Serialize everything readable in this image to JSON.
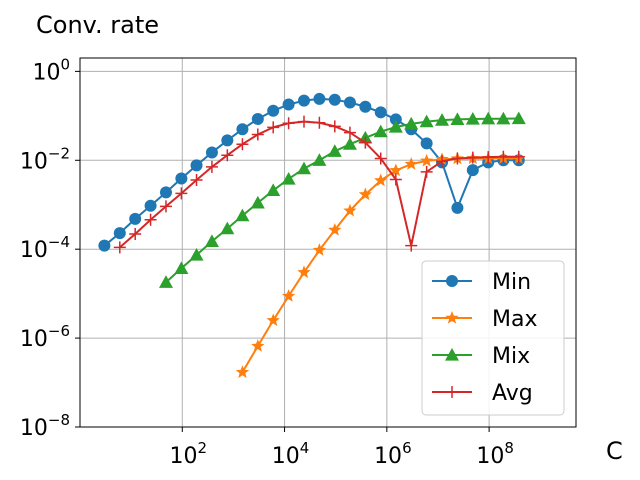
{
  "chart_data": {
    "type": "line",
    "title": "Conv. rate",
    "xlabel": "C",
    "ylabel": "",
    "xscale": "log",
    "yscale": "log",
    "xlim": [
      1,
      5000000000
    ],
    "ylim": [
      1e-08,
      2
    ],
    "xticks": [
      {
        "value": 100,
        "base": "10",
        "exp": "2"
      },
      {
        "value": 10000,
        "base": "10",
        "exp": "4"
      },
      {
        "value": 1000000,
        "base": "10",
        "exp": "6"
      },
      {
        "value": 100000000,
        "base": "10",
        "exp": "8"
      }
    ],
    "yticks": [
      {
        "value": 1,
        "base": "10",
        "exp": "0"
      },
      {
        "value": 0.01,
        "base": "10",
        "exp": "−2"
      },
      {
        "value": 0.0001,
        "base": "10",
        "exp": "−4"
      },
      {
        "value": 1e-06,
        "base": "10",
        "exp": "−6"
      },
      {
        "value": 1e-08,
        "base": "10",
        "exp": "−8"
      }
    ],
    "grid": true,
    "legend_position": "lower-right",
    "series": [
      {
        "name": "Min",
        "color": "#1f77b4",
        "marker": "circle",
        "x": [
          3,
          6,
          12,
          24,
          48,
          96,
          190,
          380,
          760,
          1500,
          3000,
          6000,
          12000,
          24000,
          48000,
          96000,
          190000,
          380000,
          760000,
          1500000,
          3000000,
          6000000,
          12000000,
          24000000,
          48000000,
          96000000,
          190000000,
          380000000
        ],
        "y": [
          0.00012,
          0.00023,
          0.00048,
          0.00095,
          0.0019,
          0.0039,
          0.0077,
          0.015,
          0.028,
          0.05,
          0.085,
          0.13,
          0.18,
          0.22,
          0.24,
          0.23,
          0.2,
          0.16,
          0.12,
          0.083,
          0.05,
          0.024,
          0.009,
          0.00085,
          0.006,
          0.009,
          0.01,
          0.01
        ]
      },
      {
        "name": "Max",
        "color": "#ff7f0e",
        "marker": "star",
        "x": [
          1500,
          3000,
          6000,
          12000,
          24000,
          48000,
          96000,
          190000,
          380000,
          760000,
          1500000,
          3000000,
          6000000,
          12000000,
          24000000,
          48000000,
          96000000,
          190000000,
          380000000
        ],
        "y": [
          1.7e-07,
          6.6e-07,
          2.5e-06,
          8.8e-06,
          3e-05,
          9.5e-05,
          0.00027,
          0.00073,
          0.0017,
          0.0035,
          0.0059,
          0.0082,
          0.0097,
          0.0105,
          0.0109,
          0.011,
          0.011,
          0.0111,
          0.0111
        ]
      },
      {
        "name": "Mix",
        "color": "#2ca02c",
        "marker": "triangle",
        "x": [
          48,
          96,
          190,
          380,
          760,
          1500,
          3000,
          6000,
          12000,
          24000,
          48000,
          96000,
          190000,
          380000,
          760000,
          1500000,
          3000000,
          6000000,
          12000000,
          24000000,
          48000000,
          96000000,
          190000000,
          380000000
        ],
        "y": [
          1.8e-05,
          3.7e-05,
          7.4e-05,
          0.00015,
          0.00029,
          0.00057,
          0.0011,
          0.0021,
          0.0038,
          0.0065,
          0.01,
          0.016,
          0.023,
          0.032,
          0.044,
          0.056,
          0.066,
          0.074,
          0.08,
          0.083,
          0.085,
          0.086,
          0.086,
          0.087
        ]
      },
      {
        "name": "Avg",
        "color": "#d62728",
        "marker": "plus",
        "x": [
          6,
          12,
          24,
          48,
          96,
          190,
          380,
          760,
          1500,
          3000,
          6000,
          12000,
          24000,
          48000,
          96000,
          190000,
          380000,
          760000,
          1500000,
          3000000,
          6000000,
          12000000,
          24000000,
          48000000,
          96000000,
          190000000,
          380000000
        ],
        "y": [
          0.00011,
          0.00022,
          0.00046,
          0.00092,
          0.0018,
          0.0036,
          0.0071,
          0.013,
          0.023,
          0.038,
          0.055,
          0.068,
          0.074,
          0.07,
          0.058,
          0.042,
          0.025,
          0.011,
          0.0037,
          0.00012,
          0.0055,
          0.0095,
          0.011,
          0.0115,
          0.0118,
          0.012,
          0.012
        ]
      }
    ]
  }
}
